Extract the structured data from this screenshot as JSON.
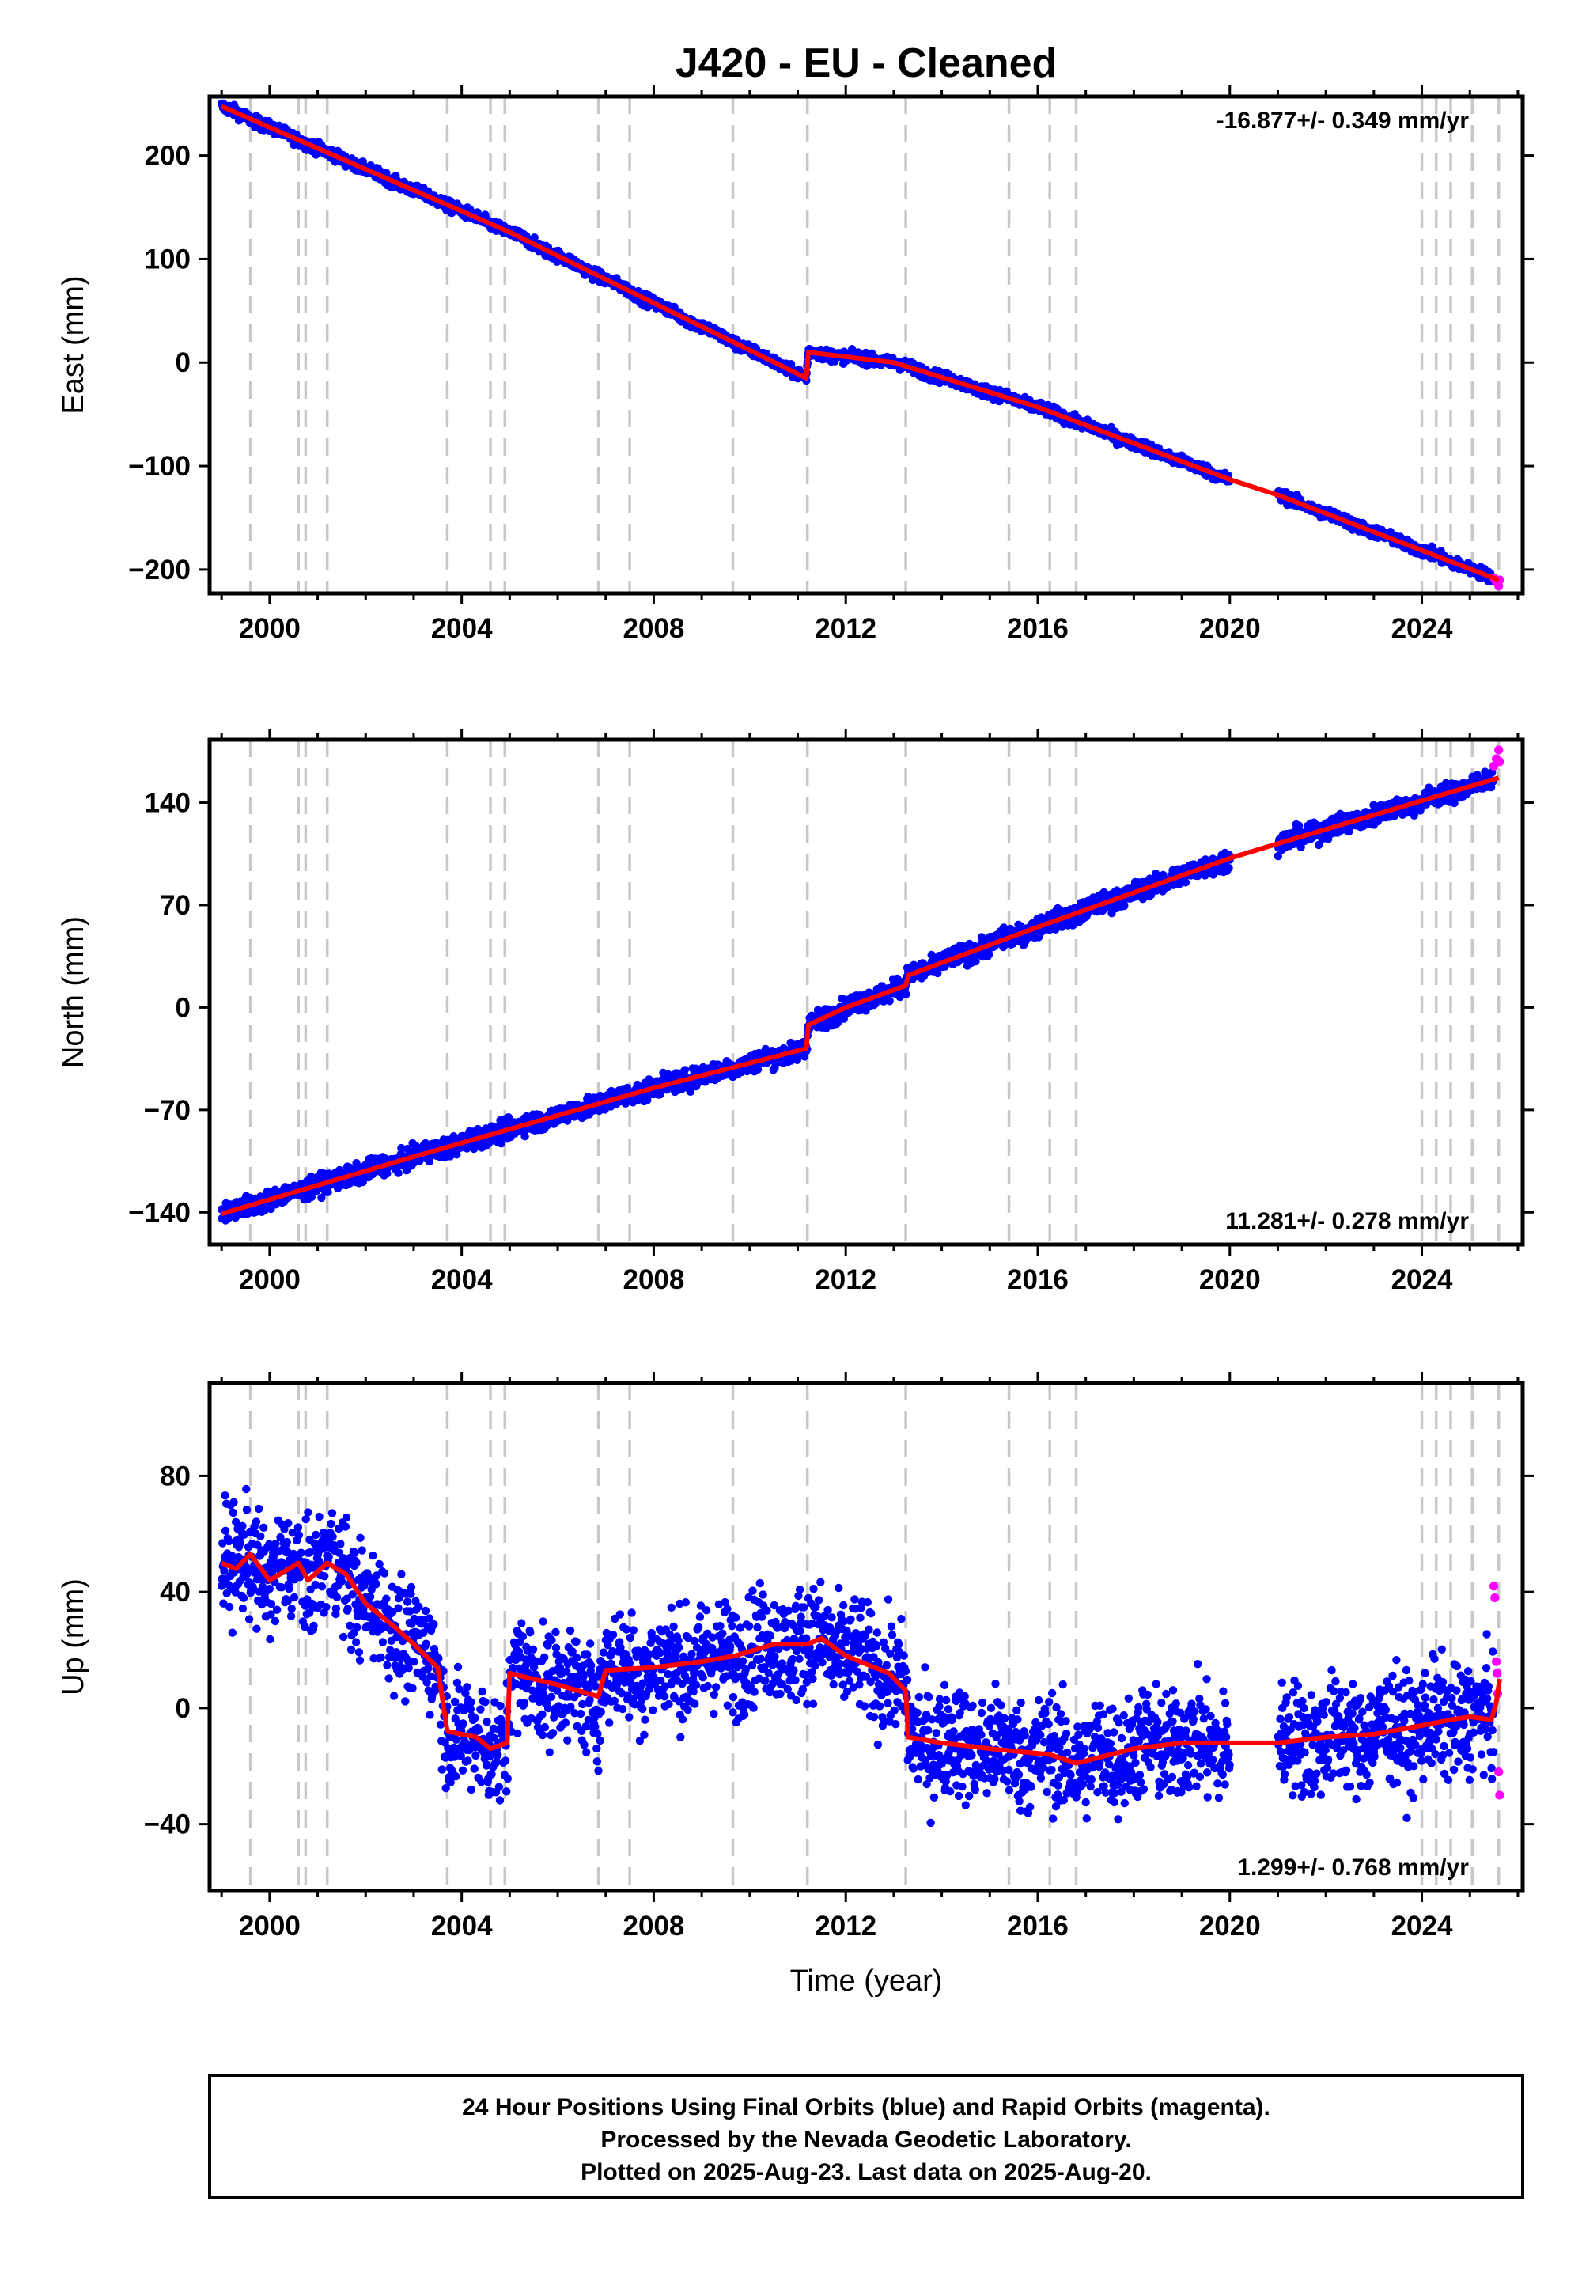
{
  "title": "J420  - EU - Cleaned",
  "x_label": "Time (year)",
  "footer": {
    "line1": "24 Hour Positions Using Final Orbits (blue) and Rapid Orbits (magenta).",
    "line2": "Processed by the Nevada Geodetic Laboratory.",
    "line3": "Plotted on 2025-Aug-23. Last data on 2025-Aug-20."
  },
  "colors": {
    "final": "#0000ff",
    "rapid": "#ff00ff",
    "model": "#ff0000",
    "event_line": "#c8c8c8"
  },
  "chart_data": [
    {
      "type": "scatter",
      "name": "east",
      "ylabel": "East (mm)",
      "rate_text": "-16.877+/- 0.349 mm/yr",
      "rate_position": "top-right",
      "xlim": [
        1998.75,
        2026.1
      ],
      "ylim": [
        -223,
        257
      ],
      "x_ticks": [
        2000,
        2004,
        2008,
        2012,
        2016,
        2020,
        2024
      ],
      "y_ticks": [
        200,
        100,
        0,
        -100,
        -200
      ],
      "y_tick_labels": [
        "200",
        "100",
        "0",
        "−100",
        "−200"
      ],
      "event_lines": [
        1999.6,
        2000.6,
        2000.75,
        2001.2,
        2003.7,
        2004.6,
        2004.9,
        2006.85,
        2007.5,
        2009.65,
        2011.2,
        2013.25,
        2015.4,
        2016.25,
        2016.8,
        2024.0,
        2024.3,
        2024.6,
        2025.05,
        2025.6
      ],
      "gaps": [
        [
          2020.0,
          2021.0
        ]
      ],
      "scatter_noise_mm": 2.6,
      "model": [
        [
          1999.0,
          247.5
        ],
        [
          2005.0,
          126
        ],
        [
          2011.18,
          -15
        ],
        [
          2011.22,
          10
        ],
        [
          2013.0,
          0
        ],
        [
          2016.0,
          -43
        ],
        [
          2020.0,
          -113
        ],
        [
          2021.0,
          -128
        ],
        [
          2025.6,
          -210
        ]
      ],
      "rapid": [
        [
          2025.5,
          -208
        ],
        [
          2025.55,
          -212
        ],
        [
          2025.6,
          -216
        ],
        [
          2025.62,
          -210
        ]
      ]
    },
    {
      "type": "scatter",
      "name": "north",
      "ylabel": "North (mm)",
      "rate_text": "11.281+/- 0.278 mm/yr",
      "rate_position": "bottom-right",
      "xlim": [
        1998.75,
        2026.1
      ],
      "ylim": [
        -162,
        183
      ],
      "x_ticks": [
        2000,
        2004,
        2008,
        2012,
        2016,
        2020,
        2024
      ],
      "y_ticks": [
        140,
        70,
        0,
        -70,
        -140
      ],
      "y_tick_labels": [
        "140",
        "70",
        "0",
        "−70",
        "−140"
      ],
      "event_lines": [
        1999.6,
        2000.6,
        2000.75,
        2001.2,
        2003.7,
        2004.6,
        2004.9,
        2006.85,
        2007.5,
        2009.65,
        2011.2,
        2013.25,
        2015.4,
        2016.25,
        2016.8,
        2024.0,
        2024.3,
        2024.6,
        2025.05,
        2025.6
      ],
      "gaps": [
        [
          2020.0,
          2021.0
        ]
      ],
      "scatter_noise_mm": 3.2,
      "model": [
        [
          1999.0,
          -141
        ],
        [
          2003.0,
          -102
        ],
        [
          2008.0,
          -55
        ],
        [
          2011.18,
          -28
        ],
        [
          2011.22,
          -12
        ],
        [
          2012.0,
          0
        ],
        [
          2013.25,
          15
        ],
        [
          2013.3,
          22
        ],
        [
          2016.0,
          55
        ],
        [
          2020.0,
          102
        ],
        [
          2021.0,
          112
        ],
        [
          2025.6,
          157
        ]
      ],
      "rapid": [
        [
          2025.5,
          165
        ],
        [
          2025.55,
          170
        ],
        [
          2025.6,
          176
        ],
        [
          2025.62,
          168
        ]
      ]
    },
    {
      "type": "scatter",
      "name": "up",
      "ylabel": "Up (mm)",
      "rate_text": "1.299+/- 0.768 mm/yr",
      "rate_position": "bottom-right",
      "xlim": [
        1998.75,
        2026.1
      ],
      "ylim": [
        -63,
        112
      ],
      "x_ticks": [
        2000,
        2004,
        2008,
        2012,
        2016,
        2020,
        2024
      ],
      "y_ticks": [
        80,
        40,
        0,
        -40
      ],
      "y_tick_labels": [
        "80",
        "40",
        "0",
        "−40"
      ],
      "event_lines": [
        1999.6,
        2000.6,
        2000.75,
        2001.2,
        2003.7,
        2004.6,
        2004.9,
        2006.85,
        2007.5,
        2009.65,
        2011.2,
        2013.25,
        2015.4,
        2016.25,
        2016.8,
        2024.0,
        2024.3,
        2024.6,
        2025.05,
        2025.6
      ],
      "gaps": [
        [
          2020.0,
          2021.0
        ]
      ],
      "scatter_noise_mm": 9.5,
      "model": [
        [
          1999.0,
          50
        ],
        [
          1999.3,
          48
        ],
        [
          1999.6,
          53
        ],
        [
          2000.0,
          44
        ],
        [
          2000.6,
          50
        ],
        [
          2000.8,
          44
        ],
        [
          2001.2,
          50
        ],
        [
          2001.6,
          46
        ],
        [
          2002.0,
          36
        ],
        [
          2002.6,
          28
        ],
        [
          2003.0,
          22
        ],
        [
          2003.5,
          14
        ],
        [
          2003.7,
          -8
        ],
        [
          2004.3,
          -10
        ],
        [
          2004.6,
          -14
        ],
        [
          2004.95,
          -12
        ],
        [
          2005.0,
          12
        ],
        [
          2006.0,
          8
        ],
        [
          2006.85,
          4
        ],
        [
          2007.0,
          13
        ],
        [
          2008.0,
          14
        ],
        [
          2009.0,
          16
        ],
        [
          2009.7,
          18
        ],
        [
          2010.5,
          22
        ],
        [
          2011.2,
          22
        ],
        [
          2011.5,
          24
        ],
        [
          2012.0,
          18
        ],
        [
          2012.9,
          12
        ],
        [
          2013.25,
          6
        ],
        [
          2013.3,
          -10
        ],
        [
          2014.0,
          -12
        ],
        [
          2015.0,
          -14
        ],
        [
          2016.25,
          -16
        ],
        [
          2016.8,
          -19
        ],
        [
          2018.0,
          -14
        ],
        [
          2019.0,
          -12
        ],
        [
          2020.0,
          -12
        ],
        [
          2021.0,
          -12
        ],
        [
          2022.0,
          -10
        ],
        [
          2023.0,
          -9
        ],
        [
          2024.0,
          -6
        ],
        [
          2024.6,
          -4
        ],
        [
          2025.0,
          -3
        ],
        [
          2025.45,
          -4
        ],
        [
          2025.55,
          2
        ],
        [
          2025.62,
          10
        ]
      ],
      "rapid": [
        [
          2025.5,
          42
        ],
        [
          2025.52,
          38
        ],
        [
          2025.55,
          16
        ],
        [
          2025.57,
          12
        ],
        [
          2025.58,
          5
        ],
        [
          2025.6,
          -22
        ],
        [
          2025.62,
          -30
        ]
      ]
    }
  ]
}
